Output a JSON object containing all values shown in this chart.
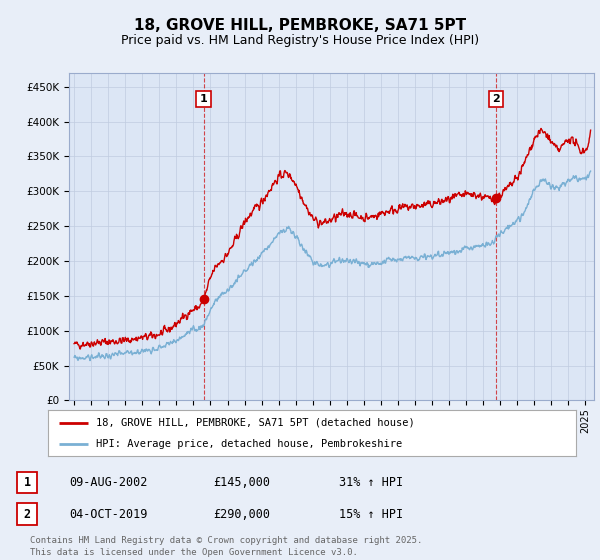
{
  "title": "18, GROVE HILL, PEMBROKE, SA71 5PT",
  "subtitle": "Price paid vs. HM Land Registry's House Price Index (HPI)",
  "ytick_values": [
    0,
    50000,
    100000,
    150000,
    200000,
    250000,
    300000,
    350000,
    400000,
    450000
  ],
  "ylim": [
    0,
    470000
  ],
  "xlim_start": 1994.7,
  "xlim_end": 2025.5,
  "marker1_x": 2002.6,
  "marker1_y": 145000,
  "marker2_x": 2019.75,
  "marker2_y": 290000,
  "legend_line1": "18, GROVE HILL, PEMBROKE, SA71 5PT (detached house)",
  "legend_line2": "HPI: Average price, detached house, Pembrokeshire",
  "table_row1": [
    "1",
    "09-AUG-2002",
    "£145,000",
    "31% ↑ HPI"
  ],
  "table_row2": [
    "2",
    "04-OCT-2019",
    "£290,000",
    "15% ↑ HPI"
  ],
  "footer": "Contains HM Land Registry data © Crown copyright and database right 2025.\nThis data is licensed under the Open Government Licence v3.0.",
  "red_color": "#cc0000",
  "blue_color": "#7ab0d4",
  "background_color": "#e8eef8",
  "plot_bg_color": "#dce6f5",
  "grid_color": "#c0cce0",
  "title_fontsize": 11,
  "subtitle_fontsize": 9
}
